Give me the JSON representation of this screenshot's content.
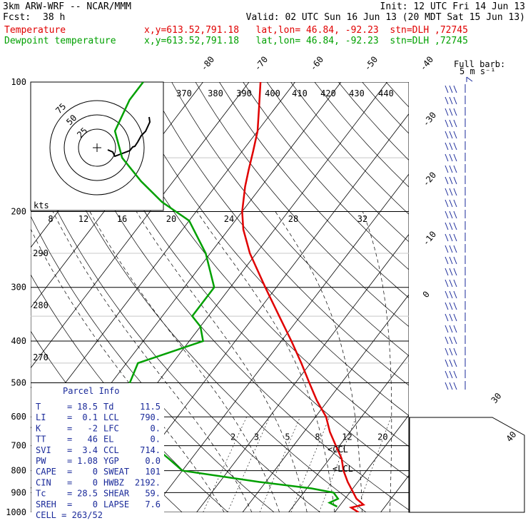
{
  "header": {
    "model": "3km ARW-WRF -- NCAR/MMM",
    "init": "Init: 12 UTC Fri 14 Jun 13",
    "fcst_label": "Fcst:",
    "fcst_value": "38 h",
    "valid": "Valid: 02 UTC Sun 16 Jun 13 (20 MDT Sat 15 Jun 13)",
    "temp_label": "Temperature",
    "temp_info": "x,y=613.52,791.18   lat,lon= 46.84, -92.23  stn=DLH ,72745",
    "dew_label": "Dewpoint temperature",
    "dew_info": "x,y=613.52,791.18   lat,lon= 46.84, -92.23  stn=DLH ,72745"
  },
  "colors": {
    "temperature": "#e00000",
    "dewpoint": "#00a000",
    "parcel_info": "#1a2a9a",
    "barbs": "#1a2a9a"
  },
  "wind_key": {
    "line1": "Full barb:",
    "line2": "5 m s⁻¹"
  },
  "hodograph": {
    "units": "kts",
    "ring_labels": [
      "25",
      "50",
      "75"
    ]
  },
  "parcel_info": {
    "title": "Parcel Info",
    "rows": [
      {
        "l1": "T",
        "v1": "18.5",
        "l2": "Td",
        "v2": "11.5"
      },
      {
        "l1": "LI",
        "v1": "0.1",
        "l2": "LCL",
        "v2": "790."
      },
      {
        "l1": "K",
        "v1": "-2",
        "l2": "LFC",
        "v2": "0."
      },
      {
        "l1": "TT",
        "v1": "46",
        "l2": "EL",
        "v2": "0."
      },
      {
        "l1": "SVI",
        "v1": "3.4",
        "l2": "CCL",
        "v2": "714."
      },
      {
        "l1": "PW",
        "v1": "1.08",
        "l2": "YGP",
        "v2": "0.0"
      },
      {
        "l1": "CAPE",
        "v1": "0",
        "l2": "SWEAT",
        "v2": "101"
      },
      {
        "l1": "CIN",
        "v1": "0",
        "l2": "HWBZ",
        "v2": "2192."
      },
      {
        "l1": "Tc",
        "v1": "28.5",
        "l2": "SHEAR",
        "v2": "59."
      },
      {
        "l1": "SREH",
        "v1": "0",
        "l2": "LAPSE",
        "v2": "7.6"
      }
    ],
    "cell_label": "CELL =",
    "cell_value": "263/52"
  },
  "labels": {
    "ccl": "CCL",
    "lcl": "LCL"
  },
  "chart_data": {
    "type": "line",
    "title": "",
    "y_axis": {
      "label": "",
      "scale": "log-pressure",
      "unit": "hPa",
      "range": [
        1000,
        100
      ],
      "ticks": [
        100,
        200,
        300,
        400,
        500,
        600,
        700,
        800,
        900,
        1000
      ]
    },
    "isotherm_labels_top": [
      "-80",
      "-70",
      "-60",
      "-50",
      "-40"
    ],
    "isotherm_labels_right": [
      "-30",
      "-20",
      "-10",
      "0",
      "30",
      "40"
    ],
    "theta_labels": [
      "370",
      "380",
      "390",
      "400",
      "410",
      "420",
      "430",
      "440"
    ],
    "hodo_scale_labels": [
      "8",
      "12",
      "16",
      "20",
      "24",
      "28",
      "32"
    ],
    "theta_left_labels": [
      "290",
      "280",
      "270"
    ],
    "mixing_ratio_labels": [
      "2",
      "3",
      "5",
      "8",
      "12",
      "20"
    ],
    "series": [
      {
        "name": "Temperature",
        "points": [
          [
            1000,
            25.2
          ],
          [
            975,
            22.8
          ],
          [
            960,
            25
          ],
          [
            930,
            22.5
          ],
          [
            900,
            20.8
          ],
          [
            850,
            17.8
          ],
          [
            800,
            15
          ],
          [
            750,
            12.6
          ],
          [
            700,
            9.2
          ],
          [
            650,
            5.6
          ],
          [
            600,
            2.3
          ],
          [
            550,
            -2.4
          ],
          [
            500,
            -7
          ],
          [
            450,
            -12
          ],
          [
            400,
            -17.8
          ],
          [
            350,
            -24.6
          ],
          [
            300,
            -32.4
          ],
          [
            250,
            -41.4
          ],
          [
            220,
            -46.8
          ],
          [
            200,
            -50
          ],
          [
            175,
            -53.5
          ],
          [
            160,
            -55.5
          ],
          [
            145,
            -57.6
          ],
          [
            130,
            -60
          ],
          [
            115,
            -63.5
          ],
          [
            100,
            -67.5
          ]
        ]
      },
      {
        "name": "Dewpoint temperature",
        "points": [
          [
            970,
            19.6
          ],
          [
            950,
            17.3
          ],
          [
            930,
            18.5
          ],
          [
            900,
            16.5
          ],
          [
            880,
            11
          ],
          [
            850,
            -1.5
          ],
          [
            800,
            -20
          ],
          [
            750,
            -25
          ],
          [
            700,
            -30.5
          ],
          [
            650,
            -33
          ],
          [
            600,
            -36
          ],
          [
            550,
            -40
          ],
          [
            500,
            -46
          ],
          [
            450,
            -47.5
          ],
          [
            400,
            -37
          ],
          [
            370,
            -40
          ],
          [
            350,
            -43.5
          ],
          [
            300,
            -43.5
          ],
          [
            250,
            -51
          ],
          [
            210,
            -60
          ],
          [
            190,
            -69
          ],
          [
            170,
            -77
          ],
          [
            150,
            -85
          ],
          [
            130,
            -91
          ],
          [
            110,
            -93
          ],
          [
            100,
            -93
          ]
        ]
      }
    ],
    "hodograph_points": [
      [
        1.5,
        -0.3
      ],
      [
        2.2,
        -0.6
      ],
      [
        2.5,
        -1.2
      ],
      [
        4.6,
        -0.4
      ],
      [
        5.0,
        0.1
      ],
      [
        5.3,
        0.2
      ],
      [
        5.7,
        0.8
      ],
      [
        6.2,
        1.7
      ],
      [
        6.8,
        2.3
      ],
      [
        7.4,
        3.6
      ],
      [
        7.3,
        4.3
      ]
    ]
  }
}
